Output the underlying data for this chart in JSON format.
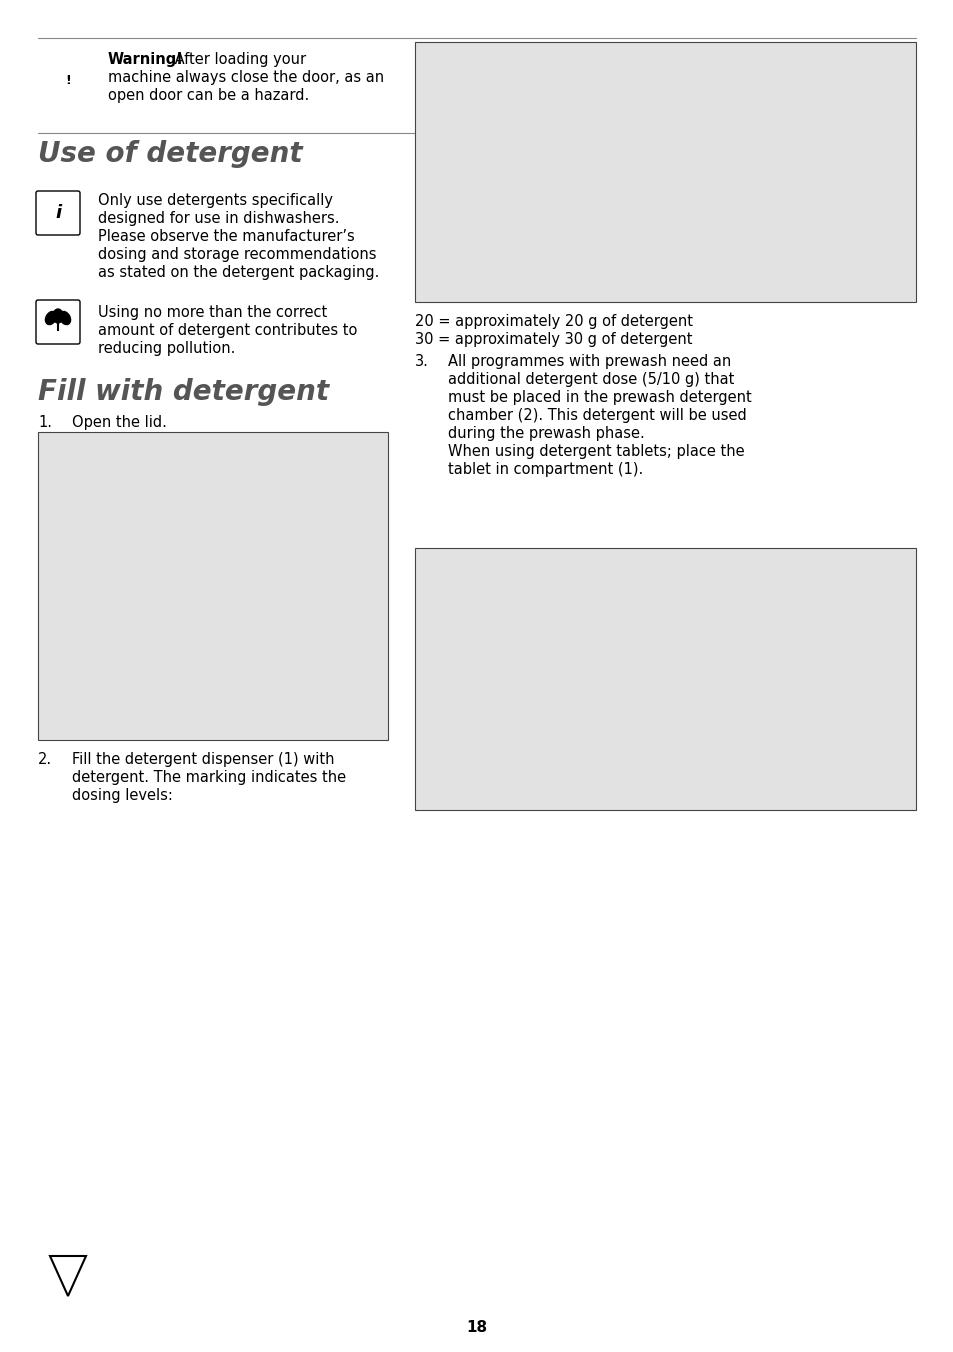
{
  "page_bg": "#ffffff",
  "page_number": "18",
  "body_fontsize": 10.5,
  "title_fontsize": 20,
  "title_color": "#555555",
  "body_color": "#000000",
  "warning_bold": "Warning!",
  "warning_rest_1": " After loading your",
  "warning_rest_2": "machine always close the door, as an",
  "warning_rest_3": "open door can be a hazard.",
  "section1_title": "Use of detergent",
  "info_lines": [
    "Only use detergents specifically",
    "designed for use in dishwashers.",
    "Please observe the manufacturer’s",
    "dosing and storage recommendations",
    "as stated on the detergent packaging."
  ],
  "eco_lines": [
    "Using no more than the correct",
    "amount of detergent contributes to",
    "reducing pollution."
  ],
  "section2_title": "Fill with detergent",
  "step1": "Open the lid.",
  "step2_lines": [
    "Fill the detergent dispenser (1) with",
    "detergent. The marking indicates the",
    "dosing levels:"
  ],
  "dosing_20": "20 = approximately 20 g of detergent",
  "dosing_30": "30 = approximately 30 g of detergent",
  "step3_lines": [
    "All programmes with prewash need an",
    "additional detergent dose (5/10 g) that",
    "must be placed in the prewash detergent",
    "chamber (2). This detergent will be used",
    "during the prewash phase.",
    "When using detergent tablets; place the",
    "tablet in compartment (1)."
  ],
  "img_bg": "#e2e2e2",
  "lh": 0.0175
}
